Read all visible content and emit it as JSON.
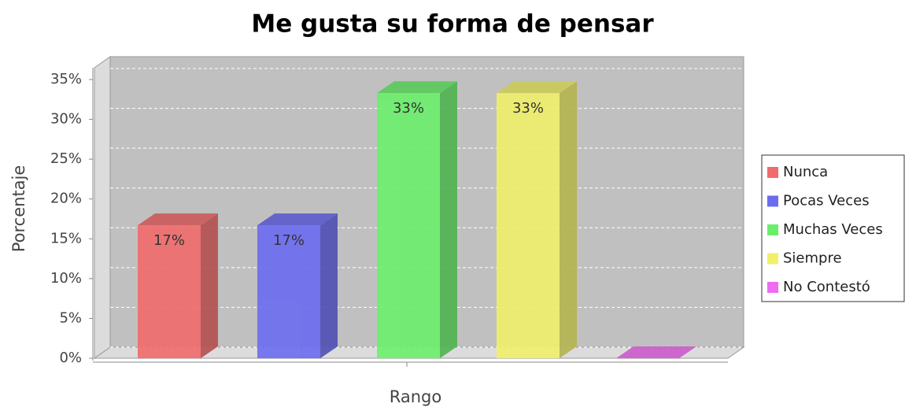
{
  "chart_data": {
    "type": "bar3d",
    "title": "Me gusta su forma de pensar",
    "y_label": "Porcentaje",
    "x_label": "Rango",
    "series": [
      {
        "name": "Nunca",
        "color": "#f06b6b",
        "values": [
          16.7
        ],
        "value_labels": [
          "17%"
        ]
      },
      {
        "name": "Pocas Veces",
        "color": "#6b6bf0",
        "values": [
          16.7
        ],
        "value_labels": [
          "17%"
        ]
      },
      {
        "name": "Muchas Veces",
        "color": "#6bef6b",
        "values": [
          33.3
        ],
        "value_labels": [
          "33%"
        ]
      },
      {
        "name": "Siempre",
        "color": "#f0f06b",
        "values": [
          33.3
        ],
        "value_labels": [
          "33%"
        ]
      },
      {
        "name": "No Contestó",
        "color": "#f06bf0",
        "values": [
          0
        ]
      }
    ],
    "ylim": [
      0,
      35
    ],
    "yticks": [
      {
        "value": 0,
        "label": "0%"
      },
      {
        "value": 5,
        "label": "5%"
      },
      {
        "value": 10,
        "label": "10%"
      },
      {
        "value": 15,
        "label": "15%"
      },
      {
        "value": 20,
        "label": "20%"
      },
      {
        "value": 25,
        "label": "25%"
      },
      {
        "value": 30,
        "label": "30%"
      },
      {
        "value": 35,
        "label": "35%"
      }
    ],
    "grid": true,
    "legend": "right"
  }
}
